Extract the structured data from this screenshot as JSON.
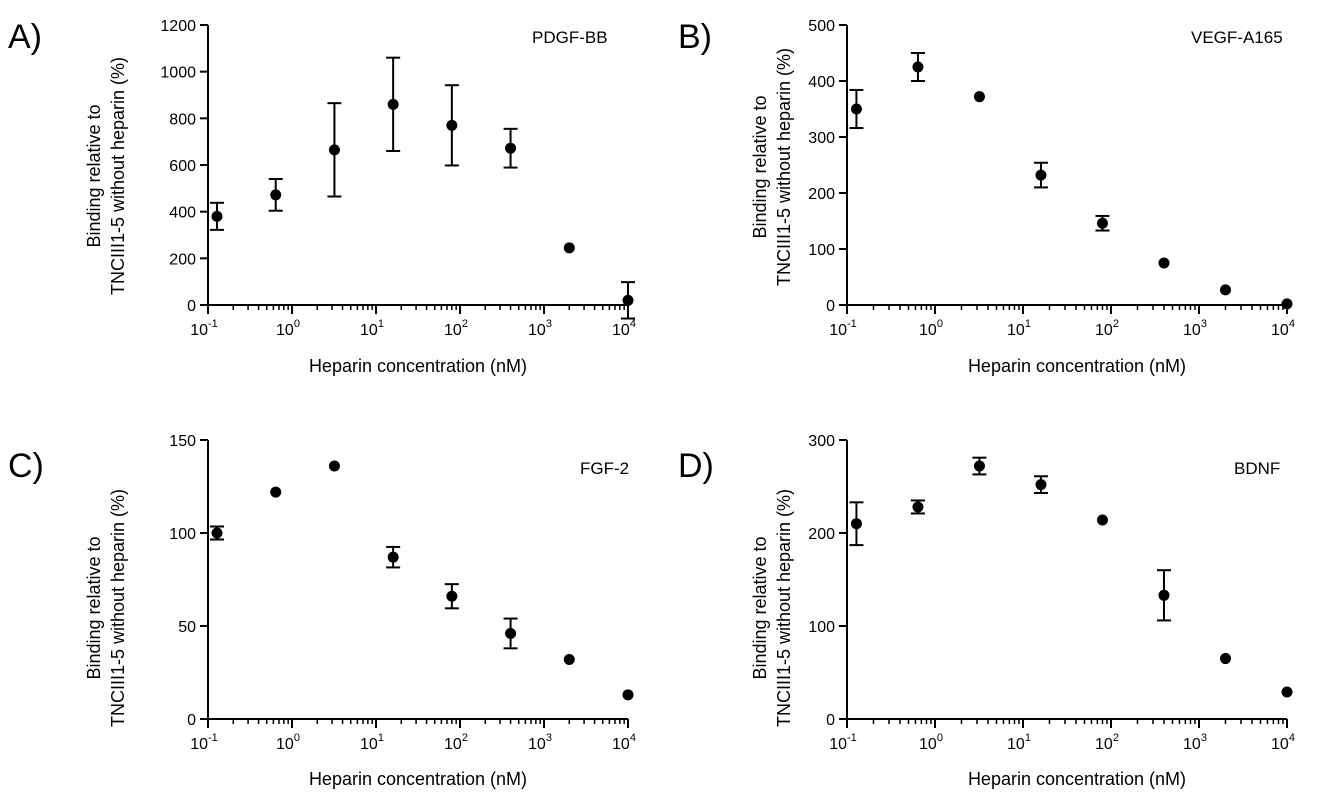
{
  "chart_data": [
    {
      "type": "scatter",
      "panel": "A)",
      "title": "PDGF-BB",
      "xlabel": "Heparin concentration (nM)",
      "ylabel_line1": "Binding relative to",
      "ylabel_line2": "TNCIII1-5 without heparin (%)",
      "xscale": "log",
      "xlim": [
        0.1,
        10000
      ],
      "ylim": [
        0,
        1200
      ],
      "yticks": [
        0,
        200,
        400,
        600,
        800,
        1000,
        1200
      ],
      "x": [
        0.128,
        0.64,
        3.2,
        16,
        80,
        400,
        2000,
        10000
      ],
      "y": [
        380,
        472,
        665,
        860,
        770,
        672,
        245,
        20
      ],
      "error": [
        58,
        68,
        200,
        200,
        172,
        83,
        0,
        78
      ]
    },
    {
      "type": "scatter",
      "panel": "B)",
      "title": "VEGF-A165",
      "xlabel": "Heparin concentration (nM)",
      "ylabel_line1": "Binding relative to",
      "ylabel_line2": "TNCIII1-5 without heparin (%)",
      "xscale": "log",
      "xlim": [
        0.1,
        10000
      ],
      "ylim": [
        0,
        500
      ],
      "yticks": [
        0,
        100,
        200,
        300,
        400,
        500
      ],
      "x": [
        0.128,
        0.64,
        3.2,
        16,
        80,
        400,
        2000,
        10000
      ],
      "y": [
        350,
        425,
        372,
        232,
        146,
        75,
        27,
        2
      ],
      "error": [
        34,
        25,
        0,
        22,
        13,
        0,
        0,
        0
      ]
    },
    {
      "type": "scatter",
      "panel": "C)",
      "title": "FGF-2",
      "xlabel": "Heparin concentration (nM)",
      "ylabel_line1": "Binding relative to",
      "ylabel_line2": "TNCIII1-5 without heparin (%)",
      "xscale": "log",
      "xlim": [
        0.1,
        10000
      ],
      "ylim": [
        0,
        150
      ],
      "yticks": [
        0,
        50,
        100,
        150
      ],
      "x": [
        0.128,
        0.64,
        3.2,
        16,
        80,
        400,
        2000,
        10000
      ],
      "y": [
        100,
        122,
        136,
        87,
        66,
        46,
        32,
        13
      ],
      "error": [
        3.5,
        0,
        0,
        5.5,
        6.5,
        8,
        0,
        0
      ]
    },
    {
      "type": "scatter",
      "panel": "D)",
      "title": "BDNF",
      "xlabel": "Heparin concentration (nM)",
      "ylabel_line1": "Binding relative to",
      "ylabel_line2": "TNCIII1-5 without heparin (%)",
      "xscale": "log",
      "xlim": [
        0.1,
        10000
      ],
      "ylim": [
        0,
        300
      ],
      "yticks": [
        0,
        100,
        200,
        300
      ],
      "x": [
        0.128,
        0.64,
        3.2,
        16,
        80,
        400,
        2000,
        10000
      ],
      "y": [
        210,
        228,
        272,
        252,
        214,
        133,
        65,
        29
      ],
      "error": [
        23,
        7,
        9,
        9,
        0,
        27,
        0,
        0
      ]
    }
  ],
  "x_tick_labels": [
    {
      "base": "10",
      "exp": "-1"
    },
    {
      "base": "10",
      "exp": "0"
    },
    {
      "base": "10",
      "exp": "1"
    },
    {
      "base": "10",
      "exp": "2"
    },
    {
      "base": "10",
      "exp": "3"
    },
    {
      "base": "10",
      "exp": "4"
    }
  ],
  "colors": {
    "ink": "#000000",
    "background": "#ffffff"
  }
}
